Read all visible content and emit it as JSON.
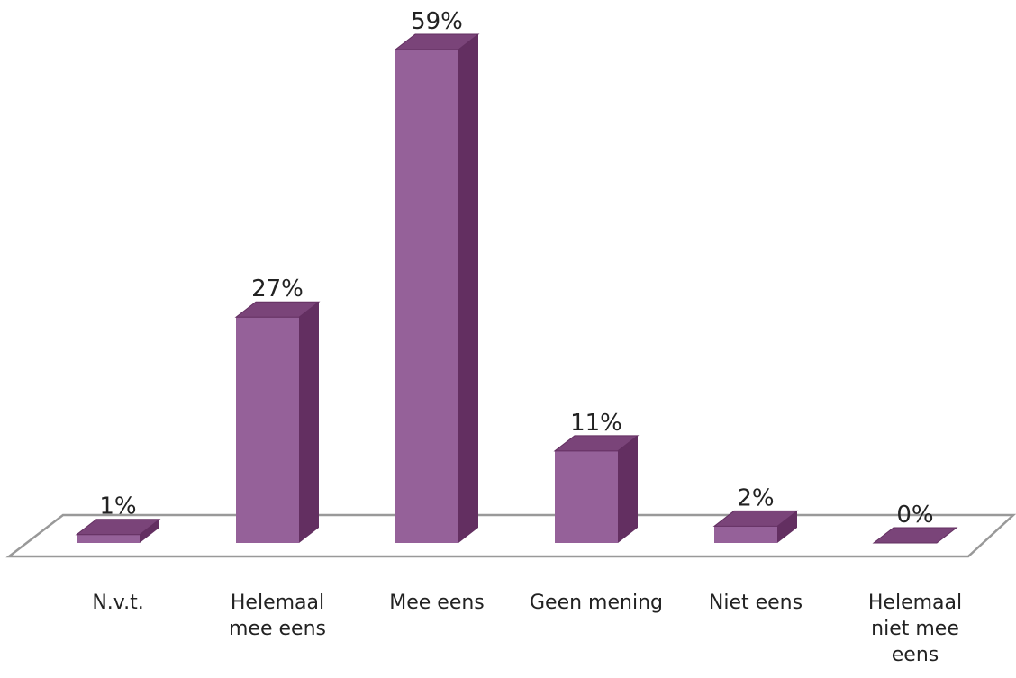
{
  "chart_data": {
    "type": "bar3d",
    "categories": [
      "N.v.t.",
      "Helemaal mee eens",
      "Mee eens",
      "Geen mening",
      "Niet eens",
      "Helemaal niet mee eens"
    ],
    "values": [
      1,
      27,
      59,
      11,
      2,
      0
    ],
    "value_labels": [
      "1%",
      "27%",
      "59%",
      "11%",
      "2%",
      "0%"
    ],
    "color": "#956199",
    "side_color": "#632f61",
    "top_color": "#7a4479"
  }
}
